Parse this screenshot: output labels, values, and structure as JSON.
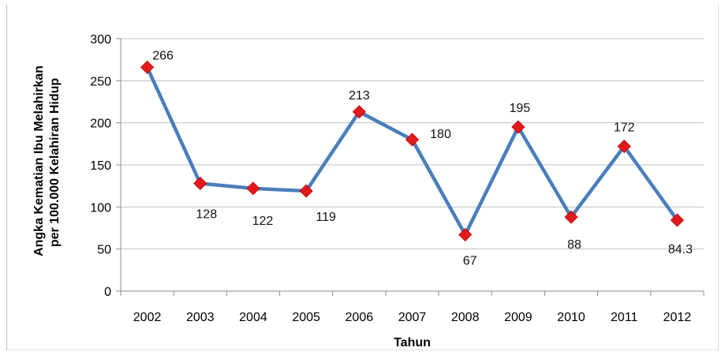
{
  "chart_data": {
    "type": "line",
    "categories": [
      "2002",
      "2003",
      "2004",
      "2005",
      "2006",
      "2007",
      "2008",
      "2009",
      "2010",
      "2011",
      "2012"
    ],
    "series": [
      {
        "values": [
          266,
          128,
          122,
          119,
          213,
          180,
          67,
          195,
          88,
          172,
          84.3
        ],
        "labels": [
          "266",
          "128",
          "122",
          "119",
          "213",
          "180",
          "67",
          "195",
          "88",
          "172",
          "84.3"
        ]
      }
    ],
    "xlabel": "Tahun",
    "ylabel_lines": [
      "Angka Kematian Ibu Melahirkan",
      "per 100.000 Kelahiran Hidup"
    ],
    "ylim": [
      0,
      300
    ],
    "yticks": [
      "0",
      "50",
      "100",
      "150",
      "200",
      "250",
      "300"
    ],
    "grid": true,
    "legend": "none",
    "colors": {
      "line": "#4a7ebb",
      "marker": "#e31a1c",
      "grid": "#bfbfbf"
    }
  }
}
